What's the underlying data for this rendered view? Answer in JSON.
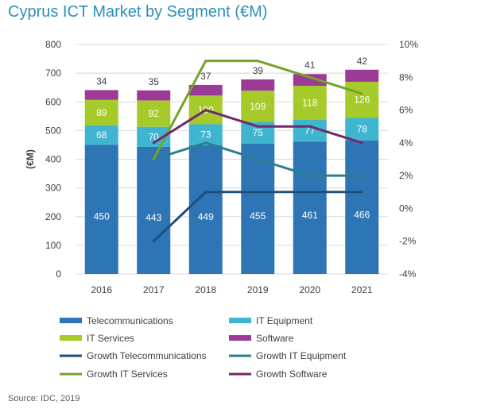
{
  "title": "Cyprus ICT Market by Segment (€M)",
  "source": "Source: IDC, 2019",
  "chart_data": {
    "type": "bar",
    "stacked": true,
    "categories": [
      "2016",
      "2017",
      "2018",
      "2019",
      "2020",
      "2021"
    ],
    "ylabel": "(€M)",
    "ylim": [
      0,
      800
    ],
    "yticks": [
      "0",
      "100",
      "200",
      "300",
      "400",
      "500",
      "600",
      "700",
      "800"
    ],
    "y2lim": [
      -4,
      10
    ],
    "y2ticks": [
      "-4%",
      "-2%",
      "0%",
      "2%",
      "4%",
      "6%",
      "8%",
      "10%"
    ],
    "series": [
      {
        "name": "Telecommunications",
        "color": "#2e75b6",
        "values": [
          450,
          443,
          449,
          455,
          461,
          466
        ],
        "labels": [
          "450",
          "443",
          "449",
          "455",
          "461",
          "466"
        ],
        "label_color": "#ffffff"
      },
      {
        "name": "IT Equipment",
        "color": "#3fb5cf",
        "values": [
          68,
          70,
          73,
          75,
          77,
          78
        ],
        "labels": [
          "68",
          "70",
          "73",
          "75",
          "77",
          "78"
        ],
        "label_color": "#ffffff"
      },
      {
        "name": "IT Services",
        "color": "#a6ca2a",
        "values": [
          89,
          92,
          100,
          109,
          118,
          126
        ],
        "labels": [
          "89",
          "92",
          "100",
          "109",
          "118",
          "126"
        ],
        "label_color": "#ffffff"
      },
      {
        "name": "Software",
        "color": "#9b3b96",
        "values": [
          34,
          35,
          37,
          39,
          41,
          42
        ],
        "labels": [
          "34",
          "35",
          "37",
          "39",
          "41",
          "42"
        ],
        "label_color": "#404040"
      }
    ],
    "growth_series": [
      {
        "name": "Growth Telecommunications",
        "color": "#1f4e79",
        "values": [
          null,
          -2,
          1,
          1,
          1,
          1
        ]
      },
      {
        "name": "Growth IT Equipment",
        "color": "#2a7f8f",
        "values": [
          null,
          3,
          4,
          3,
          2,
          2
        ]
      },
      {
        "name": "Growth IT Services",
        "color": "#76a22a",
        "values": [
          null,
          3,
          9,
          9,
          8,
          7
        ]
      },
      {
        "name": "Growth Software",
        "color": "#6f2a6b",
        "values": [
          null,
          4,
          6,
          5,
          5,
          4
        ]
      }
    ],
    "legend": [
      "Telecommunications",
      "IT Equipment",
      "IT Services",
      "Software",
      "Growth Telecommunications",
      "Growth IT Equipment",
      "Growth IT Services",
      "Growth Software"
    ]
  }
}
